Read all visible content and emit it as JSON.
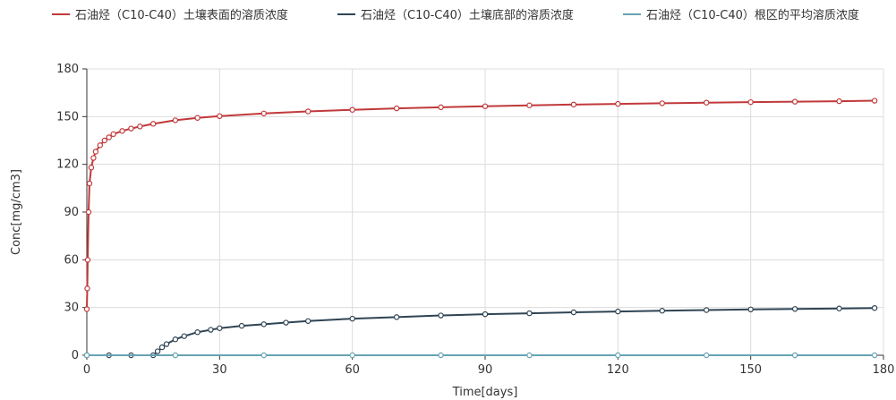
{
  "chart_data": {
    "type": "line",
    "xlabel": "Time[days]",
    "ylabel": "Conc[mg/cm3]",
    "xlim": [
      0,
      180
    ],
    "ylim": [
      0,
      180
    ],
    "x_ticks": [
      "0",
      "30",
      "60",
      "90",
      "120",
      "150",
      "180"
    ],
    "y_ticks": [
      "0",
      "30",
      "60",
      "90",
      "120",
      "150",
      "180"
    ],
    "grid": true,
    "legend_position": "top",
    "series": [
      {
        "name": "石油烃（C10-C40）土壤表面的溶质浓度",
        "color": "#c0393b",
        "x": [
          0,
          0.1,
          0.2,
          0.4,
          0.6,
          1,
          1.5,
          2,
          3,
          4,
          5,
          6,
          8,
          10,
          12,
          15,
          20,
          25,
          30,
          40,
          50,
          60,
          70,
          80,
          90,
          100,
          110,
          120,
          130,
          140,
          150,
          160,
          170,
          178
        ],
        "y": [
          29,
          42,
          60,
          90,
          108,
          118,
          124,
          128,
          132,
          135,
          137,
          139,
          141,
          142.5,
          143.8,
          145.5,
          147.7,
          149.2,
          150.3,
          152,
          153.3,
          154.3,
          155.2,
          155.9,
          156.5,
          157.1,
          157.6,
          158,
          158.4,
          158.8,
          159.1,
          159.4,
          159.7,
          160
        ]
      },
      {
        "name": "石油烃（C10-C40）土壤底部的溶质浓度",
        "color": "#2f4454",
        "x": [
          0,
          5,
          10,
          15,
          16,
          17,
          18,
          20,
          22,
          25,
          28,
          30,
          35,
          40,
          45,
          50,
          60,
          70,
          80,
          90,
          100,
          110,
          120,
          130,
          140,
          150,
          160,
          170,
          178
        ],
        "y": [
          0,
          0,
          0,
          0,
          2.5,
          5,
          7,
          10,
          12,
          14.5,
          16,
          17,
          18.5,
          19.5,
          20.5,
          21.5,
          23,
          24,
          25,
          25.8,
          26.4,
          27,
          27.5,
          28,
          28.4,
          28.8,
          29.1,
          29.4,
          29.7
        ]
      },
      {
        "name": "石油烃（C10-C40）根区的平均溶质浓度",
        "color": "#66a3b3",
        "x": [
          0,
          20,
          40,
          60,
          80,
          100,
          120,
          140,
          160,
          178
        ],
        "y": [
          0,
          0,
          0,
          0,
          0,
          0,
          0,
          0,
          0,
          0
        ]
      }
    ]
  }
}
